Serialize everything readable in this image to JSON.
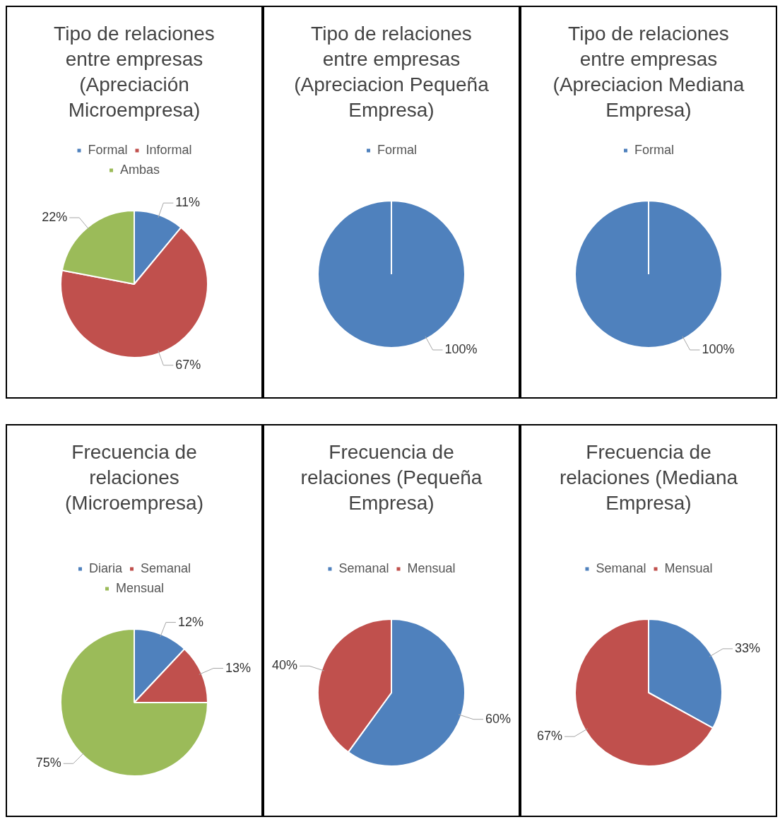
{
  "chart_data": [
    {
      "type": "pie",
      "title": "Tipo de relaciones entre empresas (Apreciación Microempresa)",
      "categories": [
        "Formal",
        "Informal",
        "Ambas"
      ],
      "values": [
        11,
        67,
        22
      ],
      "colors": [
        "#4f81bd",
        "#c0504d",
        "#9bbb59"
      ],
      "value_labels": [
        "11%",
        "67%",
        "22%"
      ],
      "legend": "top"
    },
    {
      "type": "pie",
      "title": "Tipo de relaciones entre empresas (Apreciacion Pequeña Empresa)",
      "categories": [
        "Formal"
      ],
      "values": [
        100
      ],
      "colors": [
        "#4f81bd"
      ],
      "value_labels": [
        "100%"
      ],
      "legend": "top"
    },
    {
      "type": "pie",
      "title": "Tipo de relaciones entre empresas (Apreciacion Mediana Empresa)",
      "categories": [
        "Formal"
      ],
      "values": [
        100
      ],
      "colors": [
        "#4f81bd"
      ],
      "value_labels": [
        "100%"
      ],
      "legend": "top"
    },
    {
      "type": "pie",
      "title": "Frecuencia de relaciones (Microempresa)",
      "categories": [
        "Diaria",
        "Semanal",
        "Mensual"
      ],
      "values": [
        12,
        13,
        75
      ],
      "colors": [
        "#4f81bd",
        "#c0504d",
        "#9bbb59"
      ],
      "value_labels": [
        "12%",
        "13%",
        "75%"
      ],
      "legend": "top"
    },
    {
      "type": "pie",
      "title": "Frecuencia de relaciones (Pequeña Empresa)",
      "categories": [
        "Semanal",
        "Mensual"
      ],
      "values": [
        60,
        40
      ],
      "colors": [
        "#4f81bd",
        "#c0504d"
      ],
      "value_labels": [
        "60%",
        "40%"
      ],
      "legend": "top"
    },
    {
      "type": "pie",
      "title": "Frecuencia de relaciones (Mediana Empresa)",
      "categories": [
        "Semanal",
        "Mensual"
      ],
      "values": [
        33,
        67
      ],
      "colors": [
        "#4f81bd",
        "#c0504d"
      ],
      "value_labels": [
        "33%",
        "67%"
      ],
      "legend": "top"
    }
  ]
}
